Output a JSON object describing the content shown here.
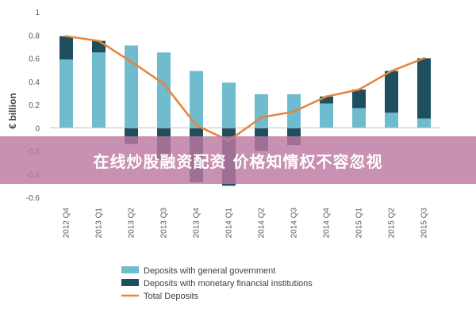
{
  "overlay": {
    "text": "在线炒股融资配资 价格知情权不容忽视"
  },
  "chart_data": {
    "type": "bar",
    "title": "",
    "ylabel": "€ billion",
    "xlabel": "",
    "ylim": [
      -0.6,
      1
    ],
    "yticks": [
      1,
      0.8,
      0.6,
      0.4,
      0.2,
      0,
      -0.2,
      -0.4,
      -0.6
    ],
    "categories": [
      "2012 Q4",
      "2013 Q1",
      "2013 Q2",
      "2013 Q3",
      "2013 Q4",
      "2014 Q1",
      "2014 Q2",
      "2014 Q3",
      "2014 Q4",
      "2015 Q1",
      "2015 Q2",
      "2015 Q3"
    ],
    "series": [
      {
        "name": "Deposits with general government",
        "kind": "bar",
        "color": "#6FBCCF",
        "values": [
          0.59,
          0.65,
          0.71,
          0.65,
          0.49,
          0.39,
          0.29,
          0.29,
          0.21,
          0.17,
          0.13,
          0.08
        ]
      },
      {
        "name": "Deposits with monetary financial institutions",
        "kind": "bar",
        "color": "#1F4E5F",
        "values": [
          0.2,
          0.1,
          -0.14,
          -0.27,
          -0.47,
          -0.5,
          -0.2,
          -0.15,
          0.06,
          0.16,
          0.36,
          0.52
        ]
      },
      {
        "name": "Total Deposits",
        "kind": "line",
        "color": "#E8833A",
        "values": [
          0.79,
          0.75,
          0.57,
          0.38,
          0.02,
          -0.11,
          0.09,
          0.14,
          0.27,
          0.33,
          0.49,
          0.6
        ]
      }
    ],
    "legend_position": "bottom-center",
    "grid": false
  }
}
